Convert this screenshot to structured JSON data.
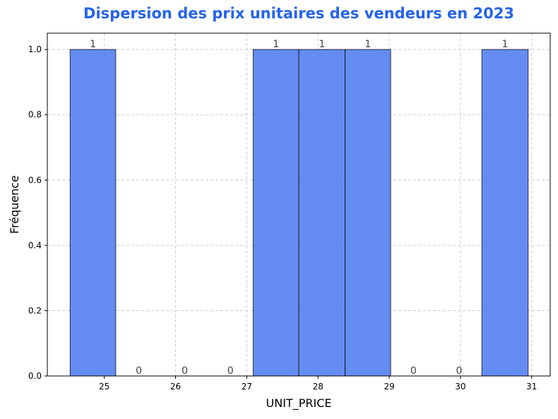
{
  "chart_data": {
    "type": "bar",
    "title": "Dispersion des prix unitaires des vendeurs en 2023",
    "xlabel": "UNIT_PRICE",
    "ylabel": "Fréquence",
    "bin_edges": [
      24.52,
      25.16,
      25.81,
      26.45,
      27.09,
      27.73,
      28.38,
      29.02,
      29.66,
      30.3,
      30.95
    ],
    "values": [
      1,
      0,
      0,
      0,
      1,
      1,
      1,
      0,
      0,
      1
    ],
    "data_labels": [
      "1",
      "0",
      "0",
      "0",
      "1",
      "1",
      "1",
      "0",
      "0",
      "1"
    ],
    "xlim": [
      24.2,
      31.26
    ],
    "ylim": [
      0,
      1.05
    ],
    "xticks": [
      25,
      26,
      27,
      28,
      29,
      30,
      31
    ],
    "xtick_labels": [
      "25",
      "26",
      "27",
      "28",
      "29",
      "30",
      "31"
    ],
    "yticks": [
      0,
      0.2,
      0.4,
      0.6,
      0.8,
      1.0
    ],
    "ytick_labels": [
      "0.0",
      "0.2",
      "0.4",
      "0.6",
      "0.8",
      "1.0"
    ],
    "grid": true,
    "colors": {
      "bar_fill": "#4a78ee",
      "bar_edge": "#000000",
      "title": "#2563eb",
      "label_text": "#444444",
      "grid": "#cccccc"
    }
  }
}
